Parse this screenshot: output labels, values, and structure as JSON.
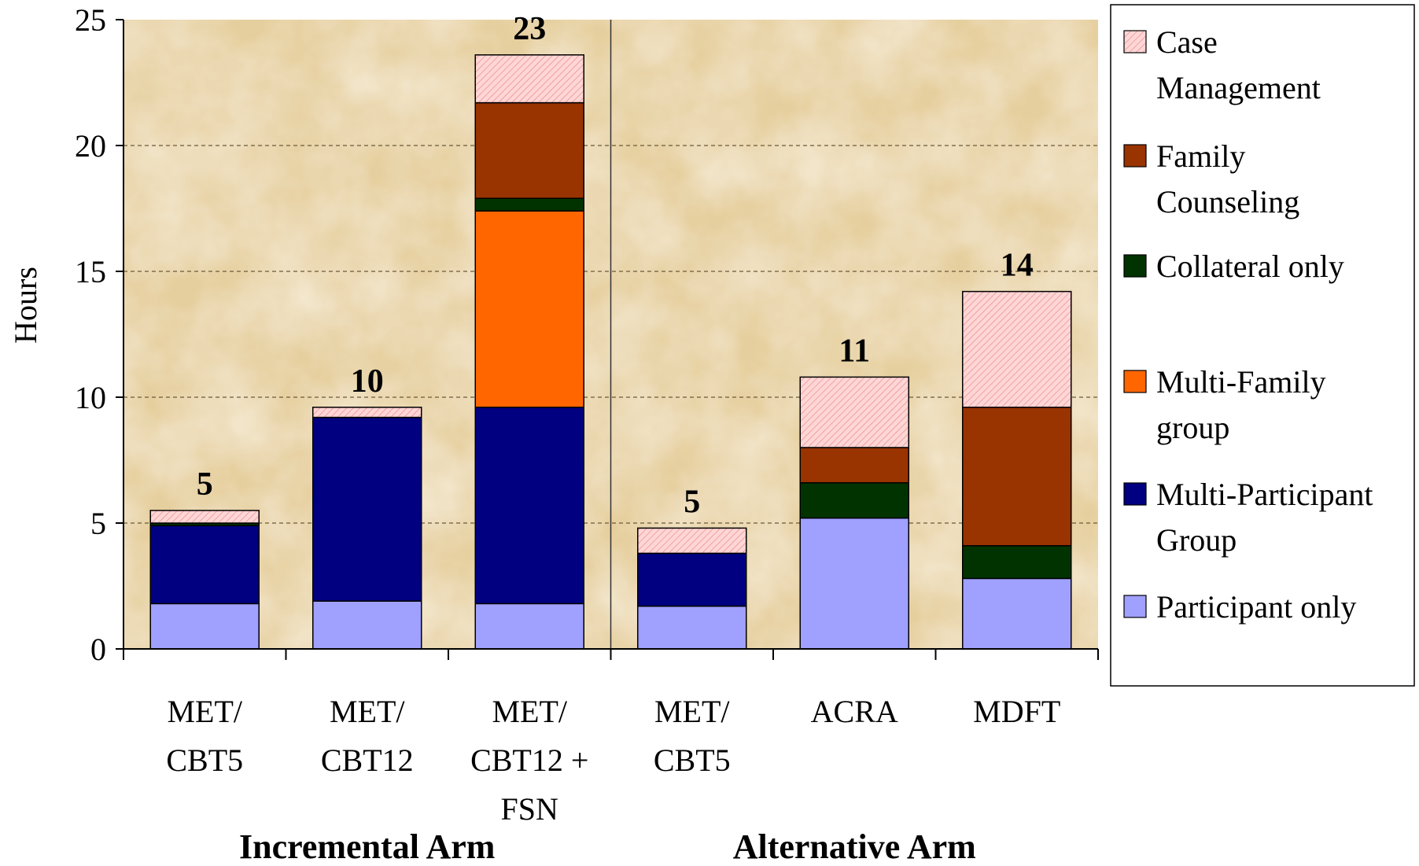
{
  "chart_data": {
    "type": "bar",
    "stacked": true,
    "ylabel": "Hours",
    "ylim": [
      0,
      25
    ],
    "yticks": [
      "0",
      "5",
      "10",
      "15",
      "20",
      "25"
    ],
    "grid": "horizontal-dashed",
    "legend_position": "right",
    "categories": [
      [
        "MET/",
        "CBT5"
      ],
      [
        "MET/",
        "CBT12"
      ],
      [
        "MET/",
        "CBT12 +",
        "FSN"
      ],
      [
        "MET/",
        "CBT5"
      ],
      [
        "ACRA"
      ],
      [
        "MDFT"
      ]
    ],
    "groups": [
      {
        "label": "Incremental Arm",
        "categories": [
          0,
          1,
          2
        ]
      },
      {
        "label": "Alternative Arm",
        "categories": [
          3,
          4,
          5
        ]
      }
    ],
    "totals": [
      "5",
      "10",
      "23",
      "5",
      "11",
      "14"
    ],
    "series": [
      {
        "name": "Participant only",
        "legend_lines": [
          "Participant only"
        ],
        "color": "#a0a0ff",
        "pattern": "solid",
        "values": [
          1.8,
          1.9,
          1.8,
          1.7,
          5.2,
          2.8
        ]
      },
      {
        "name": "Multi-Participant Group",
        "legend_lines": [
          "Multi-Participant",
          "Group"
        ],
        "color": "#000080",
        "pattern": "solid",
        "values": [
          3.1,
          7.3,
          7.8,
          2.1,
          0,
          0
        ]
      },
      {
        "name": "Multi-Family group",
        "legend_lines": [
          "Multi-Family",
          "group"
        ],
        "color": "#ff6600",
        "pattern": "solid",
        "values": [
          0,
          0,
          7.8,
          0,
          0,
          0
        ]
      },
      {
        "name": "Collateral only",
        "legend_lines": [
          "Collateral only"
        ],
        "color": "#003300",
        "pattern": "solid",
        "values": [
          0.1,
          0,
          0.5,
          0,
          1.4,
          1.3
        ]
      },
      {
        "name": "Family Counseling",
        "legend_lines": [
          " Family",
          "Counseling"
        ],
        "color": "#993300",
        "pattern": "solid",
        "values": [
          0,
          0,
          3.8,
          0,
          1.4,
          5.5
        ]
      },
      {
        "name": "Case Management",
        "legend_lines": [
          "Case",
          "Management"
        ],
        "color": "#ffcccc",
        "pattern": "hatch",
        "values": [
          0.5,
          0.4,
          1.9,
          1.0,
          2.8,
          4.6
        ]
      }
    ],
    "legend_order": [
      "Case Management",
      "Family Counseling",
      "Collateral only",
      "Multi-Family group",
      "Multi-Participant Group",
      "Participant only"
    ]
  }
}
